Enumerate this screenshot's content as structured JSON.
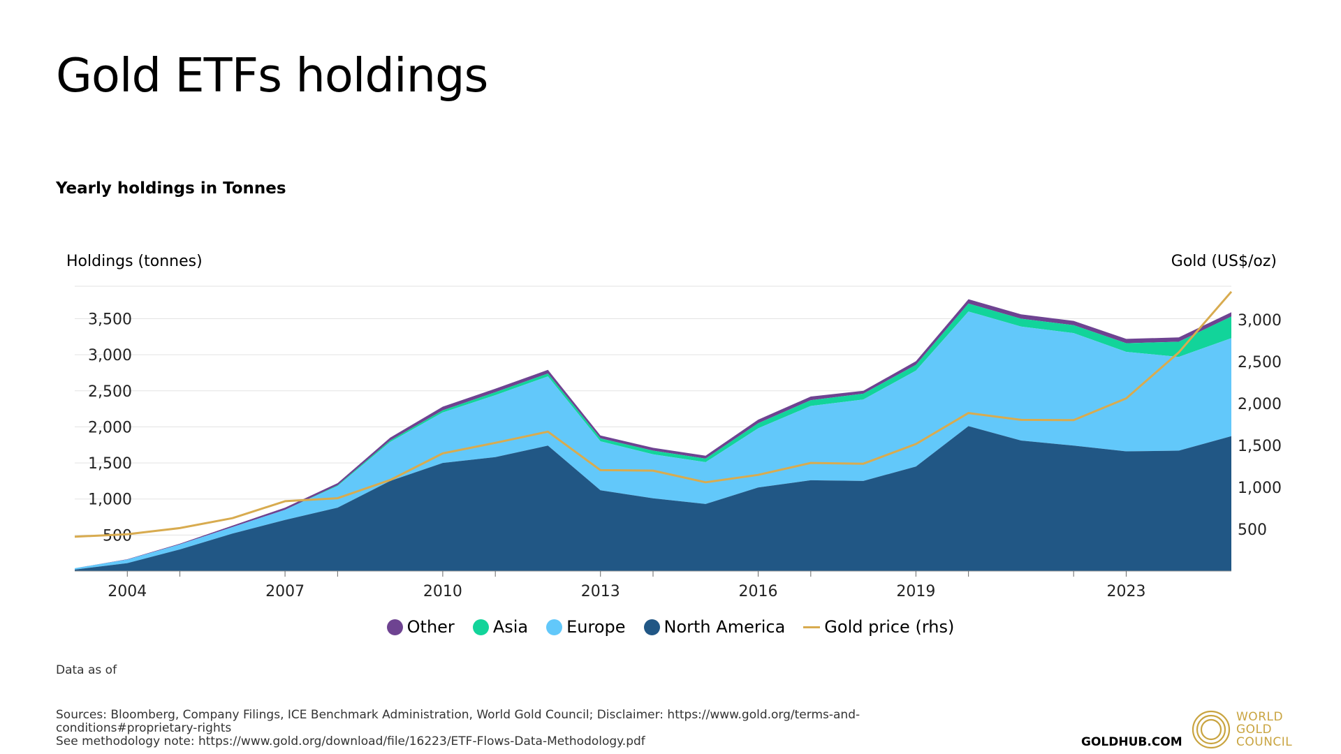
{
  "header": {
    "title": "Gold ETFs holdings",
    "subtitle": "Yearly holdings in Tonnes"
  },
  "axes": {
    "left_title": "Holdings (tonnes)",
    "right_title": "Gold (US$/oz)"
  },
  "legend": [
    {
      "label": "Other",
      "color": "#6e4391",
      "shape": "circle"
    },
    {
      "label": "Asia",
      "color": "#12d49a",
      "shape": "circle"
    },
    {
      "label": "Europe",
      "color": "#62c8fa",
      "shape": "circle"
    },
    {
      "label": "North America",
      "color": "#215785",
      "shape": "circle"
    },
    {
      "label": "Gold price (rhs)",
      "color": "#d8ab4f",
      "shape": "line"
    }
  ],
  "footer": {
    "data_as_of": "Data as of",
    "sources_line1": "Sources: Bloomberg, Company Filings, ICE Benchmark Administration, World Gold Council; Disclaimer: https://www.gold.org/terms-and-conditions#proprietary-rights",
    "sources_line2": "See methodology note: https://www.gold.org/download/file/16223/ETF-Flows-Data-Methodology.pdf",
    "goldhub": "GOLDHUB.COM",
    "wgc_logo_text": [
      "WORLD",
      "GOLD",
      "COUNCIL"
    ]
  },
  "chart_data": {
    "type": "area",
    "stacked": true,
    "x": [
      2003,
      2004,
      2005,
      2006,
      2007,
      2008,
      2009,
      2010,
      2011,
      2012,
      2013,
      2014,
      2015,
      2016,
      2017,
      2018,
      2019,
      2020,
      2021,
      2022,
      2023,
      2024,
      2025
    ],
    "x_tick_labels": [
      "2004",
      "2007",
      "2010",
      "2013",
      "2016",
      "2019",
      "2023"
    ],
    "x_tick_values": [
      2004,
      2007,
      2010,
      2013,
      2016,
      2019,
      2023
    ],
    "xlim": [
      2003,
      2025
    ],
    "series": [
      {
        "name": "North America",
        "color": "#215785",
        "values": [
          20,
          110,
          300,
          520,
          710,
          880,
          1250,
          1500,
          1580,
          1740,
          1120,
          1010,
          930,
          1160,
          1260,
          1250,
          1450,
          2010,
          1810,
          1740,
          1660,
          1670,
          1870
        ]
      },
      {
        "name": "Europe",
        "color": "#62c8fa",
        "values": [
          20,
          50,
          70,
          90,
          140,
          300,
          540,
          700,
          860,
          960,
          680,
          610,
          580,
          820,
          1030,
          1130,
          1330,
          1590,
          1580,
          1560,
          1380,
          1300,
          1360
        ]
      },
      {
        "name": "Asia",
        "color": "#12d49a",
        "values": [
          0,
          0,
          0,
          0,
          0,
          10,
          20,
          30,
          40,
          40,
          40,
          50,
          50,
          70,
          80,
          80,
          80,
          110,
          110,
          110,
          120,
          210,
          300
        ]
      },
      {
        "name": "Other",
        "color": "#6e4391",
        "values": [
          0,
          5,
          10,
          20,
          30,
          30,
          40,
          50,
          50,
          50,
          40,
          40,
          40,
          50,
          50,
          40,
          50,
          60,
          60,
          60,
          60,
          60,
          60
        ]
      }
    ],
    "line_series": {
      "name": "Gold price (rhs)",
      "color": "#d8ab4f",
      "axis": "right",
      "values": [
        410,
        440,
        513,
        632,
        834,
        870,
        1087,
        1405,
        1531,
        1664,
        1205,
        1199,
        1060,
        1148,
        1291,
        1282,
        1517,
        1887,
        1805,
        1802,
        2062,
        2610,
        3335
      ]
    },
    "y_left": {
      "ticks": [
        500,
        1000,
        1500,
        2000,
        2500,
        3000,
        3500
      ],
      "tick_labels": [
        "500",
        "1,000",
        "1,500",
        "2,000",
        "2,500",
        "3,000",
        "3,500"
      ],
      "ylim": [
        0,
        3950
      ]
    },
    "y_right": {
      "ticks": [
        500,
        1000,
        1500,
        2000,
        2500,
        3000
      ],
      "tick_labels": [
        "500",
        "1,000",
        "1,500",
        "2,000",
        "2,500",
        "3,000"
      ],
      "ylim": [
        0,
        3400
      ]
    },
    "grid": true,
    "legend_position": "bottom"
  }
}
